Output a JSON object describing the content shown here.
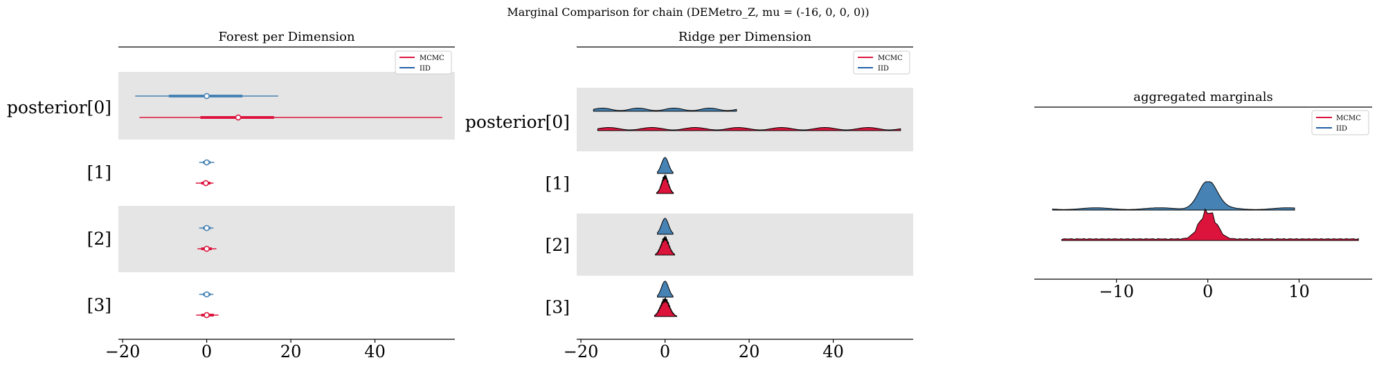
{
  "figure": {
    "suptitle": "Marginal Comparison for chain (DEMetro_Z, mu = (-16, 0, 0, 0))"
  },
  "colors": {
    "mcmc": "#dc143c",
    "iid": "#4682b4",
    "band": "#e5e5e5",
    "axis": "#000000"
  },
  "chart_data": [
    {
      "type": "forest",
      "title": "Forest per Dimension",
      "legend": {
        "placement": "top-right",
        "entries": [
          "MCMC",
          "IID"
        ]
      },
      "ylabels": [
        "posterior[0]",
        "[1]",
        "[2]",
        "[3]"
      ],
      "xticks": [
        -20,
        0,
        20,
        40
      ],
      "xlim": [
        -21,
        59
      ],
      "series": [
        {
          "name": "IID",
          "rows": [
            {
              "dim": 0,
              "median": 0.0,
              "q25": -9,
              "q75": 8.5,
              "min": -17,
              "max": 17
            },
            {
              "dim": 1,
              "median": 0.0,
              "q25": -0.9,
              "q75": 0.9,
              "min": -1.8,
              "max": 1.8
            },
            {
              "dim": 2,
              "median": 0.0,
              "q25": -0.9,
              "q75": 0.9,
              "min": -1.8,
              "max": 1.6
            },
            {
              "dim": 3,
              "median": 0.0,
              "q25": -0.9,
              "q75": 0.9,
              "min": -1.8,
              "max": 1.6
            }
          ]
        },
        {
          "name": "MCMC",
          "rows": [
            {
              "dim": 0,
              "median": 7.5,
              "q25": -1.5,
              "q75": 16,
              "min": -16,
              "max": 56
            },
            {
              "dim": 1,
              "median": -0.2,
              "q25": -1.3,
              "q75": 0.9,
              "min": -2.6,
              "max": 1.6
            },
            {
              "dim": 2,
              "median": 0.0,
              "q25": -1.3,
              "q75": 1.2,
              "min": -2.2,
              "max": 2.3
            },
            {
              "dim": 3,
              "median": 0.0,
              "q25": -1.3,
              "q75": 1.7,
              "min": -2.5,
              "max": 2.8
            }
          ]
        }
      ]
    },
    {
      "type": "ridge",
      "title": "Ridge per Dimension",
      "legend": {
        "placement": "top-right",
        "entries": [
          "MCMC",
          "IID"
        ]
      },
      "ylabels": [
        "posterior[0]",
        "[1]",
        "[2]",
        "[3]"
      ],
      "xticks": [
        -20,
        0,
        20,
        40
      ],
      "xlim": [
        -21,
        59
      ],
      "series": [
        {
          "name": "IID",
          "ranges": [
            [
              -17,
              17
            ],
            [
              -1.8,
              1.9
            ],
            [
              -1.8,
              1.9
            ],
            [
              -1.8,
              1.9
            ]
          ]
        },
        {
          "name": "MCMC",
          "ranges": [
            [
              -16,
              56
            ],
            [
              -2.0,
              2.0
            ],
            [
              -2.3,
              2.3
            ],
            [
              -2.5,
              2.8
            ]
          ]
        }
      ]
    },
    {
      "type": "ridge",
      "title": "aggregated marginals",
      "legend": {
        "placement": "top-right",
        "entries": [
          "MCMC",
          "IID"
        ]
      },
      "xticks": [
        -10,
        0,
        10
      ],
      "xlim": [
        -19,
        18
      ],
      "series": [
        {
          "name": "IID",
          "range": [
            -17,
            9.5
          ],
          "peak_at": 0,
          "peak_width": 1.0
        },
        {
          "name": "MCMC",
          "range": [
            -16,
            16.5
          ],
          "peak_at": 0,
          "peak_width": 0.9
        }
      ]
    }
  ]
}
